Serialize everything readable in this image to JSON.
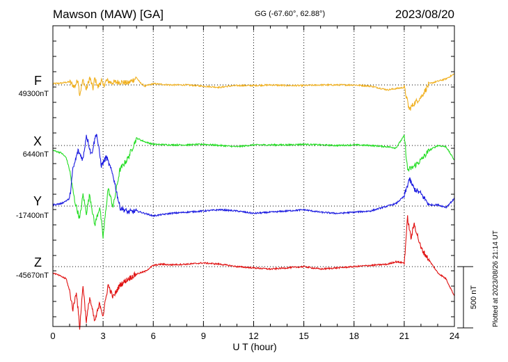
{
  "header": {
    "station": "Mawson (MAW)  [GA]",
    "coords": "GG (-67.60°,  62.88°)",
    "date": "2023/08/20"
  },
  "plotted_note": "Plotted at 2023/08/26 21:14 UT",
  "scale_bar": {
    "value_nT": 500,
    "label": "500 nT"
  },
  "chart_data": {
    "type": "line",
    "xlabel": "U T (hour)",
    "xlim": [
      0,
      24
    ],
    "xticks": [
      0,
      3,
      6,
      9,
      12,
      15,
      18,
      21,
      24
    ],
    "grid": true,
    "series": [
      {
        "name": "F",
        "baseline_label": "49300nT",
        "color": "#f0b020",
        "x": [
          0,
          0.5,
          1,
          1.3,
          1.5,
          1.6,
          1.8,
          2,
          2.2,
          2.4,
          2.5,
          2.7,
          2.9,
          3,
          3.2,
          3.5,
          4,
          4.5,
          5,
          5.2,
          5.5,
          6,
          6.5,
          7,
          8,
          9,
          10,
          10.5,
          11,
          12,
          13,
          14,
          15,
          16,
          17,
          18,
          19,
          20,
          20.5,
          21,
          21.1,
          21.3,
          21.6,
          22,
          22.5,
          23,
          23.5,
          24
        ],
        "y": [
          10,
          15,
          25,
          -15,
          45,
          -80,
          40,
          -40,
          60,
          -30,
          55,
          -20,
          40,
          -10,
          35,
          20,
          25,
          15,
          60,
          20,
          -10,
          10,
          5,
          0,
          0,
          -10,
          -20,
          -10,
          -5,
          -5,
          0,
          -5,
          -5,
          0,
          0,
          0,
          -10,
          -40,
          -30,
          -20,
          -80,
          -200,
          -150,
          -100,
          10,
          30,
          50,
          90
        ]
      },
      {
        "name": "X",
        "baseline_label": "6440nT",
        "color": "#22dd22",
        "x": [
          0,
          0.5,
          0.8,
          1,
          1.3,
          1.6,
          1.8,
          2,
          2.2,
          2.5,
          2.8,
          3,
          3.3,
          3.6,
          4,
          4.5,
          5,
          5.5,
          6,
          7,
          8,
          9,
          10,
          11,
          12,
          13,
          14,
          15,
          16,
          17,
          18,
          19,
          20,
          20.5,
          21,
          21.2,
          21.5,
          22,
          22.5,
          23,
          23.5,
          24
        ],
        "y": [
          -40,
          -60,
          -100,
          -200,
          -450,
          -600,
          -400,
          -550,
          -400,
          -650,
          -500,
          -750,
          -350,
          -500,
          -200,
          -100,
          60,
          30,
          10,
          5,
          5,
          10,
          0,
          -10,
          5,
          5,
          5,
          10,
          5,
          0,
          5,
          0,
          -10,
          -20,
          80,
          -200,
          -180,
          -120,
          -40,
          0,
          -10,
          -120
        ]
      },
      {
        "name": "Y",
        "baseline_label": "-17400nT",
        "color": "#1a1ae0",
        "x": [
          0,
          0.5,
          1,
          1.2,
          1.5,
          1.8,
          2,
          2.3,
          2.6,
          2.9,
          3.2,
          3.6,
          4,
          4.5,
          5,
          5.5,
          6,
          7,
          8,
          9,
          10,
          11,
          12,
          13,
          14,
          15,
          16,
          17,
          18,
          19,
          20,
          20.5,
          21,
          21.3,
          21.6,
          22,
          22.5,
          23,
          23.5,
          24
        ],
        "y": [
          10,
          20,
          60,
          300,
          450,
          380,
          580,
          420,
          600,
          330,
          400,
          250,
          -10,
          -50,
          -40,
          -60,
          -80,
          -60,
          -50,
          -40,
          -30,
          -40,
          -60,
          -50,
          -40,
          -30,
          -50,
          -60,
          -50,
          -40,
          0,
          20,
          80,
          220,
          140,
          100,
          10,
          10,
          -10,
          60
        ]
      },
      {
        "name": "Z",
        "baseline_label": "-45670nT",
        "color": "#e01010",
        "x": [
          0,
          0.5,
          0.8,
          1,
          1.2,
          1.4,
          1.6,
          1.8,
          2,
          2.2,
          2.5,
          2.8,
          3,
          3.3,
          3.6,
          4,
          4.5,
          5,
          5.5,
          6,
          6.5,
          7,
          8,
          9,
          10,
          10.5,
          11,
          12,
          13,
          14,
          15,
          16,
          17,
          18,
          19,
          20,
          20.5,
          21,
          21.2,
          21.4,
          21.6,
          22,
          22.5,
          23,
          23.5,
          24
        ],
        "y": [
          -50,
          -80,
          -100,
          -200,
          -350,
          -200,
          -500,
          -150,
          -450,
          -250,
          -450,
          -300,
          -400,
          -150,
          -250,
          -150,
          -100,
          -60,
          -40,
          10,
          20,
          15,
          20,
          30,
          20,
          10,
          0,
          -10,
          -20,
          -10,
          0,
          -20,
          -10,
          0,
          10,
          20,
          40,
          30,
          400,
          230,
          350,
          150,
          50,
          -50,
          -100,
          -240
        ]
      }
    ]
  }
}
